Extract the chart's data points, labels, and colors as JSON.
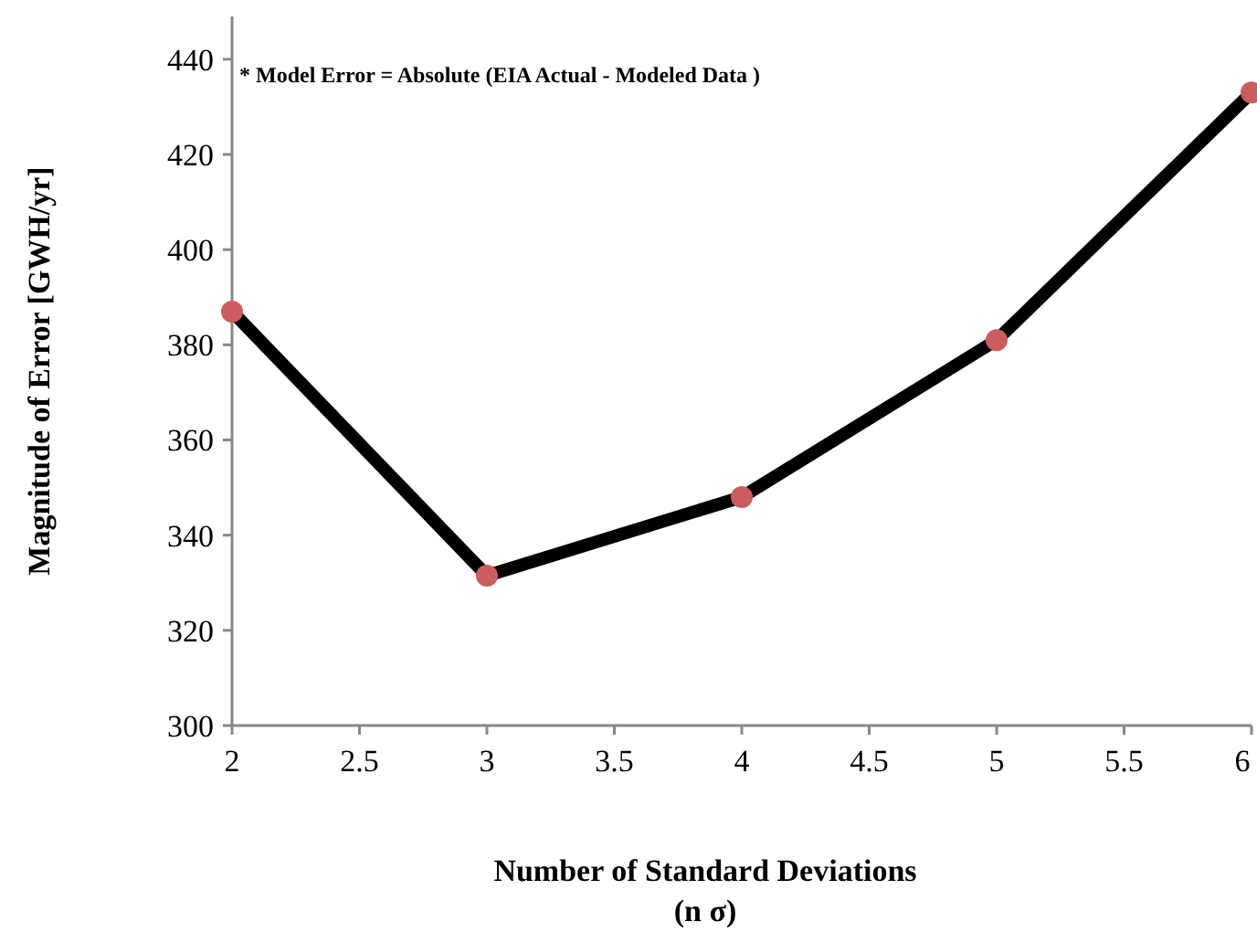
{
  "chart_data": {
    "type": "line",
    "xlabel": "Number of Standard Deviations\n(n σ)",
    "ylabel": "Magnitude of Error [GWH/yr]",
    "annotations": [
      "* Model Error = Absolute (EIA Actual - Modeled Data )"
    ],
    "x": [
      2,
      3,
      4,
      5,
      6
    ],
    "series": [
      {
        "color": "#000000",
        "marker": "none",
        "values": [
          387,
          331.5,
          348,
          381,
          433
        ]
      },
      {
        "type": "scatter",
        "color": "#cd5c5c",
        "marker": "circle",
        "values": [
          387,
          331.5,
          348,
          381,
          433
        ]
      }
    ],
    "xlim": [
      2,
      6
    ],
    "xticks": [
      2,
      2.5,
      3,
      3.5,
      4,
      4.5,
      5,
      5.5,
      6
    ],
    "ylim": [
      300,
      449
    ],
    "yticks": [
      300,
      320,
      340,
      360,
      380,
      400,
      420,
      440
    ],
    "grid": false
  }
}
